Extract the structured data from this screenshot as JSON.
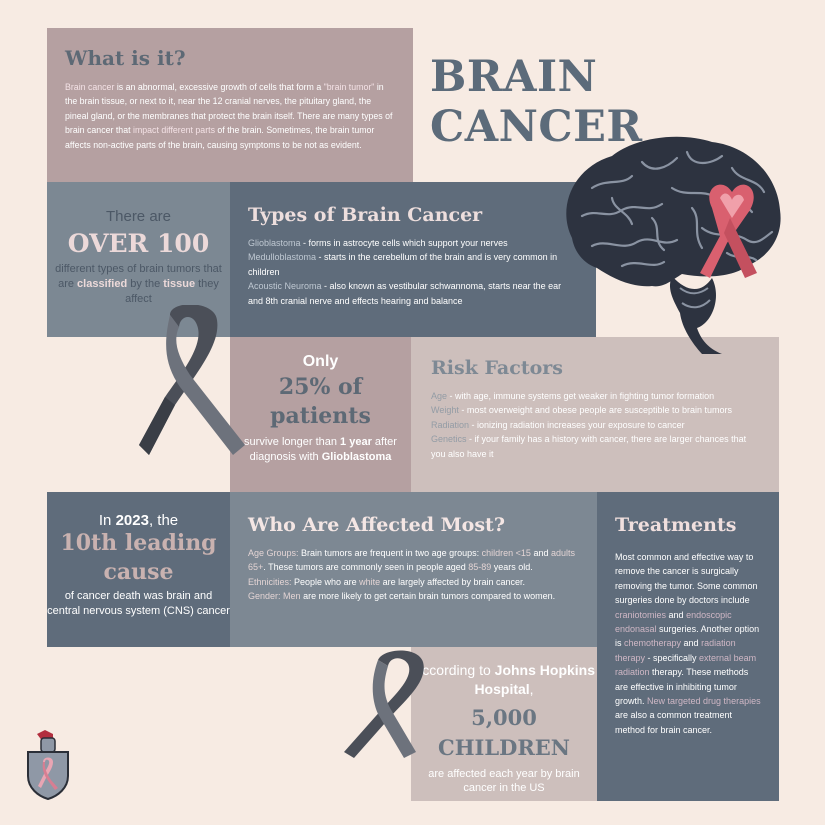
{
  "title": "BRAIN CANCER",
  "what": {
    "heading": "What is it?",
    "p1": "Brain cancer",
    "p2": " is an abnormal, excessive growth of cells that form a ",
    "p3": "\"brain tumor\"",
    "p4": " in the brain tissue, or next to it, near the 12 cranial nerves, the pituitary gland, the pineal gland, or the membranes that protect the brain itself. There are many types of brain cancer that ",
    "p5": "impact different parts",
    "p6": " of the brain. Sometimes, the brain tumor affects non-active parts of the brain, causing symptoms to be not as evident."
  },
  "over": {
    "line1": "There are",
    "big": "OVER 100",
    "line3a": "different types of brain tumors that are ",
    "line3b": "classified",
    "line3c": " by the ",
    "line3d": "tissue",
    "line3e": " they affect"
  },
  "types": {
    "heading": "Types of Brain Cancer",
    "items": [
      {
        "name": "Glioblastoma",
        "desc": " - forms in astrocyte cells which support your nerves"
      },
      {
        "name": "Medulloblastoma",
        "desc": " - starts in the cerebellum of the brain and is very common in children"
      },
      {
        "name": "Acoustic Neuroma",
        "desc": " - also known as vestibular schwannoma, starts near the ear and 8th cranial nerve and effects hearing and balance"
      }
    ]
  },
  "only": {
    "line1": "Only",
    "big": "25% of patients",
    "line3a": "survive longer than ",
    "line3b": "1 year",
    "line3c": " after diagnosis with ",
    "line3d": "Glioblastoma"
  },
  "risk": {
    "heading": "Risk Factors",
    "items": [
      {
        "name": "Age",
        "desc": " - with age,  immune systems get weaker in fighting tumor formation"
      },
      {
        "name": "Weight",
        "desc": " - most overweight and obese people are susceptible to brain tumors"
      },
      {
        "name": "Radiation",
        "desc": " - ionizing radiation increases your exposure to cancer"
      },
      {
        "name": "Genetics",
        "desc": " - if your family has a history with cancer, there are larger chances that you also have it"
      }
    ]
  },
  "year": {
    "line1a": "In ",
    "line1b": "2023",
    "line1c": ", the",
    "big": "10th leading cause",
    "line3": "of cancer death was brain and central nervous system (CNS) cancer"
  },
  "who": {
    "heading": "Who Are Affected Most?",
    "a1": "Age Groups:",
    "a2": " Brain tumors are frequent in two age groups: ",
    "a3": "children <15",
    "a4": " and ",
    "a5": "adults 65+",
    "a6": ". These tumors are commonly seen in people aged ",
    "a7": "85-89",
    "a8": " years old.",
    "e1": "Ethnicities:",
    "e2": " People who are ",
    "e3": "white",
    "e4": " are largely affected by brain cancer.",
    "g1": "Gender:",
    "g2": " ",
    "g3": "Men",
    "g4": " are more likely to get certain brain tumors compared to women."
  },
  "treat": {
    "heading": "Treatments",
    "t1": "Most common and effective way to remove the cancer is surgically removing the tumor. Some common surgeries done by doctors include ",
    "t2": "craniotomies",
    "t3": " and ",
    "t4": "endoscopic endonasal",
    "t5": " surgeries. Another option is ",
    "t6": "chemotherapy",
    "t7": " and ",
    "t8": "radiation therapy",
    "t9": " - specifically ",
    "t10": "external beam radiation",
    "t11": " therapy. These methods are effective in inhibiting tumor growth. ",
    "t12": "New targeted drug therapies",
    "t13": " are also a common treatment method for brain cancer."
  },
  "johns": {
    "line1a": "According to ",
    "line1b": "Johns Hopkins Hospital",
    "line1c": ",",
    "big": "5,000 CHILDREN",
    "line3": "are affected each year by brain cancer in the US"
  },
  "icons": {
    "brain": "brain-with-ribbon-icon",
    "ribbon": "awareness-ribbon-icon",
    "crest": "crest-logo"
  },
  "colors": {
    "background": "#f7ebe3",
    "slate": "#5f6c7b",
    "mauve": "#b5a0a1",
    "pink_ribbon": "#e0707e"
  }
}
